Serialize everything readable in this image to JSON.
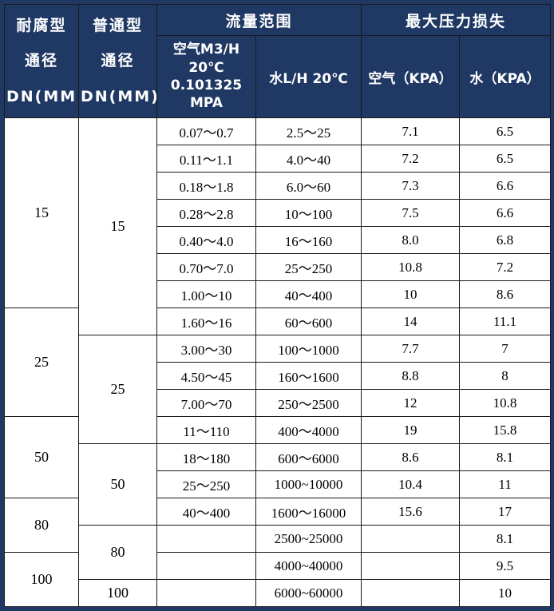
{
  "table": {
    "header": {
      "dn_corrosion": "耐腐型\n通径\nDN(MM)",
      "dn_ordinary": "普通型\n通径\nDN(MM)",
      "flow_group": "流量范围",
      "pressure_group": "最大压力损失",
      "air_flow": "空气M3/H\n20℃\n0.101325\nMPA",
      "water_flow": "水L/H 20℃",
      "air_kpa": "空气（KPA）",
      "water_kpa": "水（KPA）"
    },
    "rows": [
      {
        "dn_corrosion": "15",
        "dn_corrosion_span": 7,
        "dn_ordinary": "15",
        "dn_ordinary_span": 8,
        "air_flow": "0.07〜0.7",
        "water_flow": "2.5〜25",
        "air_kpa": "7.1",
        "water_kpa": "6.5"
      },
      {
        "air_flow": "0.11〜1.1",
        "water_flow": "4.0〜40",
        "air_kpa": "7.2",
        "water_kpa": "6.5"
      },
      {
        "air_flow": "0.18〜1.8",
        "water_flow": "6.0〜60",
        "air_kpa": "7.3",
        "water_kpa": "6.6"
      },
      {
        "air_flow": "0.28〜2.8",
        "water_flow": "10〜100",
        "air_kpa": "7.5",
        "water_kpa": "6.6"
      },
      {
        "air_flow": "0.40〜4.0",
        "water_flow": "16〜160",
        "air_kpa": "8.0",
        "water_kpa": "6.8"
      },
      {
        "air_flow": "0.70〜7.0",
        "water_flow": "25〜250",
        "air_kpa": "10.8",
        "water_kpa": "7.2"
      },
      {
        "air_flow": "1.00〜10",
        "water_flow": "40〜400",
        "air_kpa": "10",
        "water_kpa": "8.6"
      },
      {
        "dn_corrosion": "25",
        "dn_corrosion_span": 4,
        "air_flow": "1.60〜16",
        "water_flow": "60〜600",
        "air_kpa": "14",
        "water_kpa": "11.1"
      },
      {
        "dn_ordinary": "25",
        "dn_ordinary_span": 4,
        "air_flow": "3.00〜30",
        "water_flow": "100〜1000",
        "air_kpa": "7.7",
        "water_kpa": "7"
      },
      {
        "air_flow": "4.50〜45",
        "water_flow": "160〜1600",
        "air_kpa": "8.8",
        "water_kpa": "8"
      },
      {
        "air_flow": "7.00〜70",
        "water_flow": "250〜2500",
        "air_kpa": "12",
        "water_kpa": "10.8"
      },
      {
        "dn_corrosion": "50",
        "dn_corrosion_span": 3,
        "air_flow": "11〜110",
        "water_flow": "400〜4000",
        "air_kpa": "19",
        "water_kpa": "15.8"
      },
      {
        "dn_ordinary": "50",
        "dn_ordinary_span": 3,
        "air_flow": "18〜180",
        "water_flow": "600〜6000",
        "air_kpa": "8.6",
        "water_kpa": "8.1"
      },
      {
        "air_flow": "25〜250",
        "water_flow": "1000~10000",
        "air_kpa": "10.4",
        "water_kpa": "11"
      },
      {
        "dn_corrosion": "80",
        "dn_corrosion_span": 2,
        "air_flow": "40〜400",
        "water_flow": "1600〜16000",
        "air_kpa": "15.6",
        "water_kpa": "17"
      },
      {
        "dn_ordinary": "80",
        "dn_ordinary_span": 2,
        "air_flow": "",
        "water_flow": "2500~25000",
        "air_kpa": "",
        "water_kpa": "8.1"
      },
      {
        "dn_corrosion": "100",
        "dn_corrosion_span": 2,
        "air_flow": "",
        "water_flow": "4000~40000",
        "air_kpa": "",
        "water_kpa": "9.5"
      },
      {
        "dn_ordinary": "100",
        "dn_ordinary_span": 1,
        "air_flow": "",
        "water_flow": "6000~60000",
        "air_kpa": "",
        "water_kpa": "10"
      }
    ]
  },
  "colors": {
    "header_bg": "#1f3864",
    "header_text": "#ffffff",
    "grid": "#1a1a1a",
    "frame": "#1f3864",
    "body_bg": "#ffffff",
    "body_text": "#000000"
  }
}
